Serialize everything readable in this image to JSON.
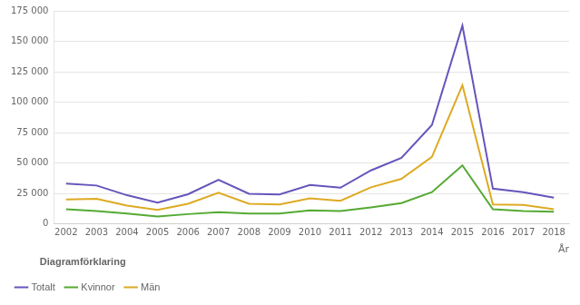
{
  "chart_data": {
    "type": "line",
    "xlabel": "År",
    "legend_title": "Diagramförklaring",
    "x": [
      2002,
      2003,
      2004,
      2005,
      2006,
      2007,
      2008,
      2009,
      2010,
      2011,
      2012,
      2013,
      2014,
      2015,
      2016,
      2017,
      2018
    ],
    "series": [
      {
        "name": "Totalt",
        "color": "#6655bb",
        "values": [
          33000,
          31500,
          23500,
          17400,
          24300,
          36200,
          24700,
          24200,
          31900,
          29700,
          43900,
          54300,
          81200,
          162900,
          28900,
          26000,
          21500
        ]
      },
      {
        "name": "Kvinnor",
        "color": "#55aa33",
        "values": [
          12000,
          10500,
          8500,
          6000,
          8000,
          9500,
          8500,
          8500,
          11000,
          10500,
          13500,
          17000,
          26000,
          48000,
          12000,
          10500,
          10000
        ]
      },
      {
        "name": "Män",
        "color": "#ddaa22",
        "values": [
          20000,
          20500,
          15000,
          11500,
          16500,
          25500,
          16500,
          16000,
          21000,
          19000,
          30000,
          37000,
          55000,
          114000,
          16000,
          15500,
          12000
        ]
      }
    ],
    "xlim": [
      2001.6,
      2018.5
    ],
    "xticks": [
      2002,
      2003,
      2004,
      2005,
      2006,
      2007,
      2008,
      2009,
      2010,
      2011,
      2012,
      2013,
      2014,
      2015,
      2016,
      2017,
      2018
    ],
    "ylim": [
      0,
      175000
    ],
    "yticks": [
      0,
      {
        "value": 25000,
        "label": "25 000"
      },
      {
        "value": 50000,
        "label": "50 000"
      },
      {
        "value": 75000,
        "label": "75 000"
      },
      {
        "value": 100000,
        "label": "100 000"
      },
      {
        "value": 125000,
        "label": "125 000"
      },
      {
        "value": 150000,
        "label": "150 000"
      },
      {
        "value": 175000,
        "label": "175 000"
      }
    ],
    "grid": "y",
    "legend": "bottom"
  }
}
